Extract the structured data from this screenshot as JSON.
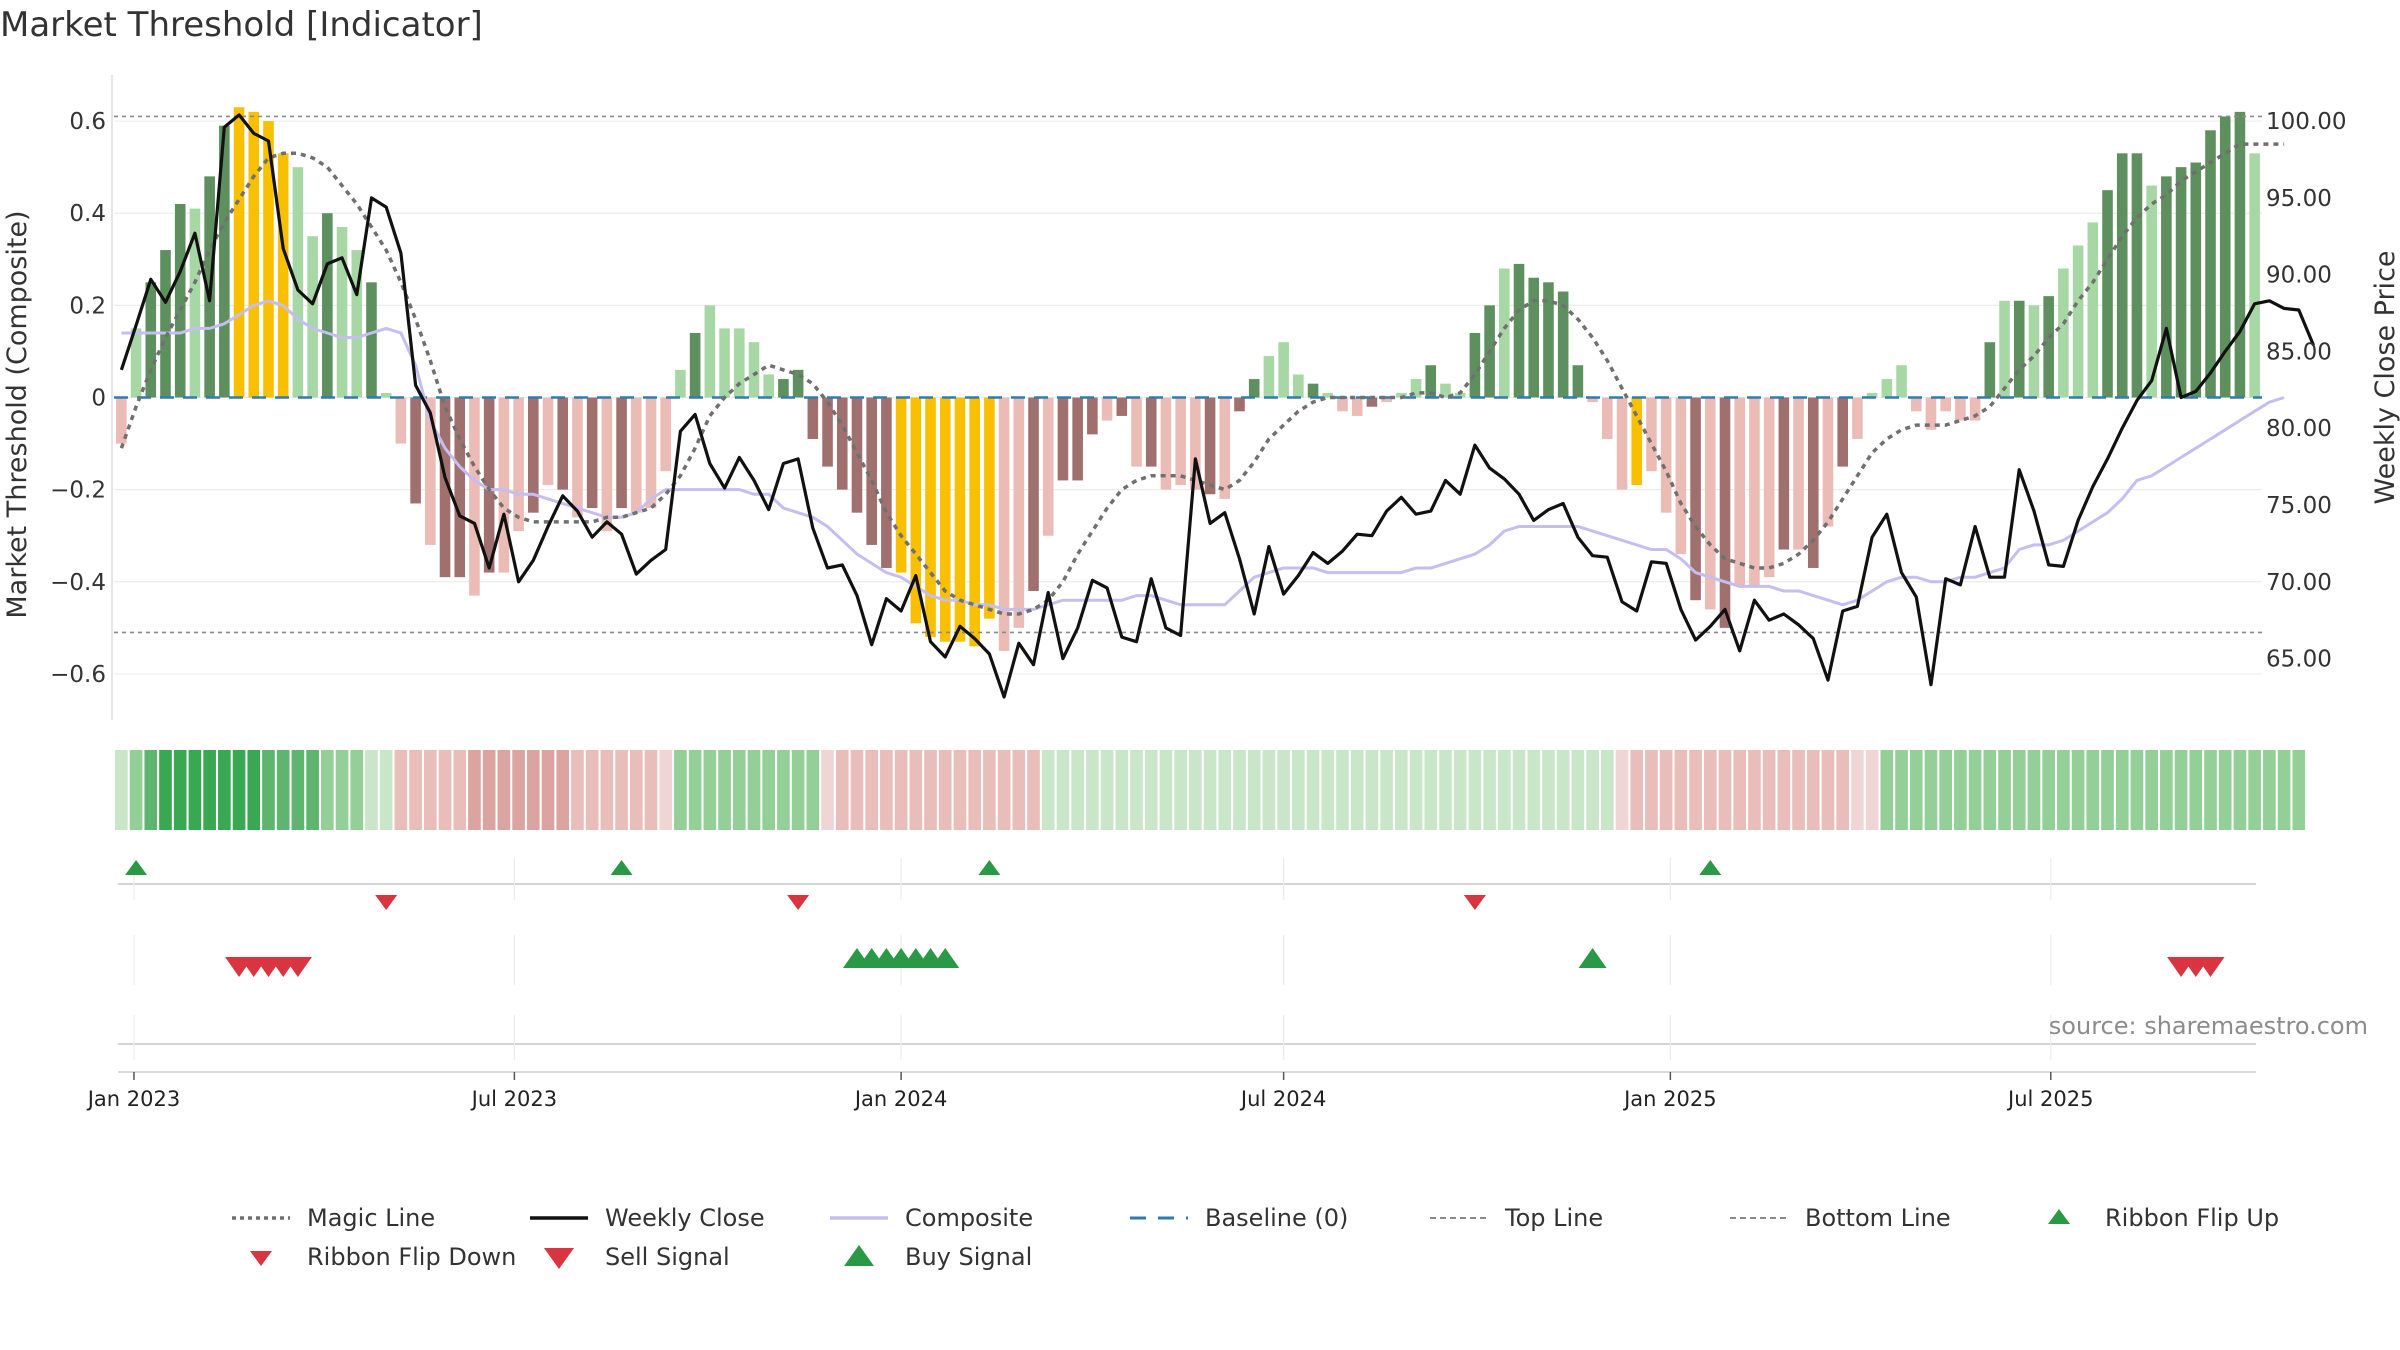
{
  "title": "Market Threshold [Indicator]",
  "source": "source: sharemaestro.com",
  "colors": {
    "gold": "#f9c002",
    "dark_green": "#5e8f5e",
    "light_green": "#a8d7a6",
    "dark_red": "#a0706e",
    "light_red": "#ebbcb6",
    "composite": "#c6bdf0",
    "close": "#111111",
    "magic": "#707070",
    "baseline": "#2f7db0",
    "up": "#2a9946",
    "down": "#d93540"
  },
  "legend": [
    {
      "label": "Magic Line",
      "icon": "dotted-line"
    },
    {
      "label": "Weekly Close",
      "icon": "solid-line"
    },
    {
      "label": "Composite",
      "icon": "composite-line"
    },
    {
      "label": "Baseline (0)",
      "icon": "dashed-line"
    },
    {
      "label": "Top Line",
      "icon": "thin-dashed-line"
    },
    {
      "label": "Bottom Line",
      "icon": "thin-dashed-line"
    },
    {
      "label": "Ribbon Flip Up",
      "icon": "triangle-up"
    },
    {
      "label": "Ribbon Flip Down",
      "icon": "triangle-down"
    },
    {
      "label": "Sell Signal",
      "icon": "triangle-down-large"
    },
    {
      "label": "Buy Signal",
      "icon": "triangle-up-large"
    }
  ],
  "chart_data": {
    "type": "bar",
    "title": "Market Threshold [Indicator]",
    "ylabel": "Market Threshold (Composite)",
    "y2label": "Weekly Close Price",
    "ylim": [
      -0.7,
      0.7
    ],
    "y2lim": [
      61.0,
      103.0
    ],
    "yticks": [
      -0.6,
      -0.4,
      -0.2,
      0,
      0.2,
      0.4,
      0.6
    ],
    "ytick_labels": [
      "−0.6",
      "−0.4",
      "−0.2",
      "0",
      "0.2",
      "0.4",
      "0.6"
    ],
    "y2ticks": [
      65,
      70,
      75,
      80,
      85,
      90,
      95,
      100
    ],
    "y2tick_labels": [
      "65.00",
      "70.00",
      "75.00",
      "80.00",
      "85.00",
      "90.00",
      "95.00",
      "100.00"
    ],
    "x_start": "2022-12-26",
    "x_ticks": [
      {
        "date": "2023-01-01",
        "label": "Jan 2023"
      },
      {
        "date": "2023-07-01",
        "label": "Jul 2023"
      },
      {
        "date": "2024-01-01",
        "label": "Jan 2024"
      },
      {
        "date": "2024-07-01",
        "label": "Jul 2024"
      },
      {
        "date": "2025-01-01",
        "label": "Jan 2025"
      },
      {
        "date": "2025-07-01",
        "label": "Jul 2025"
      }
    ],
    "top_line": 0.61,
    "bottom_line": -0.51,
    "baseline": 0,
    "composite_bars": [
      -0.1,
      0.15,
      0.25,
      0.32,
      0.42,
      0.41,
      0.48,
      0.59,
      0.63,
      0.62,
      0.6,
      0.53,
      0.5,
      0.35,
      0.4,
      0.37,
      0.32,
      0.25,
      0.01,
      -0.1,
      -0.23,
      -0.32,
      -0.39,
      -0.39,
      -0.43,
      -0.38,
      -0.38,
      -0.29,
      -0.25,
      -0.19,
      -0.2,
      -0.26,
      -0.24,
      -0.29,
      -0.24,
      -0.25,
      -0.24,
      -0.16,
      0.06,
      0.14,
      0.2,
      0.15,
      0.15,
      0.12,
      0.05,
      0.04,
      0.06,
      -0.09,
      -0.15,
      -0.2,
      -0.25,
      -0.32,
      -0.37,
      -0.38,
      -0.49,
      -0.52,
      -0.53,
      -0.53,
      -0.54,
      -0.48,
      -0.55,
      -0.5,
      -0.42,
      -0.3,
      -0.18,
      -0.18,
      -0.08,
      -0.05,
      -0.04,
      -0.15,
      -0.15,
      -0.2,
      -0.19,
      -0.2,
      -0.21,
      -0.22,
      -0.03,
      0.04,
      0.09,
      0.12,
      0.05,
      0.03,
      0.01,
      -0.03,
      -0.04,
      -0.02,
      -0.01,
      0.01,
      0.04,
      0.07,
      0.03,
      0.01,
      0.14,
      0.2,
      0.28,
      0.29,
      0.26,
      0.25,
      0.23,
      0.07,
      -0.01,
      -0.09,
      -0.2,
      -0.19,
      -0.16,
      -0.25,
      -0.34,
      -0.44,
      -0.46,
      -0.5,
      -0.41,
      -0.41,
      -0.39,
      -0.33,
      -0.33,
      -0.37,
      -0.28,
      -0.15,
      -0.09,
      0.01,
      0.04,
      0.07,
      -0.03,
      -0.07,
      -0.03,
      -0.05,
      -0.05,
      0.12,
      0.21,
      0.21,
      0.2,
      0.22,
      0.28,
      0.33,
      0.38,
      0.45,
      0.53,
      0.53,
      0.46,
      0.48,
      0.5,
      0.51,
      0.58,
      0.61,
      0.62,
      0.53
    ],
    "bar_states": "LLDDDLDDGGGGLLDLLDLLDLDDLDLLDLDLDLDLLLLDLLLLLDDDDDDDDGGGGGGGLLDLDDDLDLDLLLDLDDLLLDLLLDLLLDLLDDLDDDDDLLLGLLLDLDLLLDLDLDLLLLLLLLLDLDLDLLLDDDLDDDDDDLLDDDDGGL",
    "ribbon_levels": [
      1,
      2,
      3,
      4,
      4,
      4,
      4,
      4,
      4,
      4,
      3,
      3,
      3,
      3,
      2,
      2,
      2,
      1,
      1,
      -2,
      -2,
      -2,
      -2,
      -2,
      -3,
      -3,
      -3,
      -3,
      -3,
      -3,
      -3,
      -2,
      -2,
      -2,
      -2,
      -2,
      -2,
      -1,
      2,
      2,
      2,
      2,
      2,
      2,
      2,
      2,
      2,
      2,
      -1,
      -2,
      -2,
      -2,
      -2,
      -2,
      -2,
      -2,
      -2,
      -2,
      -2,
      -2,
      -2,
      -2,
      -2,
      1,
      1,
      1,
      1,
      1,
      1,
      1,
      1,
      1,
      1,
      1,
      1,
      1,
      1,
      1,
      1,
      1,
      1,
      1,
      1,
      1,
      1,
      1,
      1,
      1,
      1,
      1,
      1,
      1,
      1,
      1,
      1,
      1,
      1,
      1,
      1,
      1,
      1,
      1,
      -1,
      -2,
      -2,
      -2,
      -2,
      -2,
      -2,
      -2,
      -2,
      -2,
      -2,
      -2,
      -2,
      -2,
      -2,
      -2,
      -1,
      -1,
      2,
      2,
      2,
      2,
      2,
      2,
      2,
      2,
      2,
      2,
      2,
      2,
      2,
      2,
      2,
      2,
      2,
      2,
      2,
      2,
      2,
      2,
      2,
      2,
      2,
      2,
      2,
      2,
      2
    ],
    "series": [
      {
        "name": "Weekly Close",
        "axis": "right",
        "values": [
          83.8,
          86.7,
          89.7,
          88.2,
          90.2,
          92.7,
          88.3,
          99.6,
          100.4,
          99.2,
          98.7,
          91.7,
          89.0,
          88.1,
          90.7,
          91.1,
          88.7,
          95.0,
          94.4,
          91.4,
          82.8,
          81.0,
          76.8,
          74.3,
          73.8,
          70.9,
          74.4,
          70.0,
          71.4,
          73.6,
          75.6,
          74.6,
          72.9,
          73.9,
          73.1,
          70.5,
          71.4,
          72.1,
          79.8,
          80.9,
          77.7,
          76.1,
          78.1,
          76.6,
          74.7,
          77.7,
          78.0,
          73.5,
          70.9,
          71.1,
          69.1,
          65.9,
          68.9,
          68.1,
          70.4,
          66.1,
          65.1,
          67.1,
          66.3,
          65.3,
          62.5,
          66.0,
          64.6,
          69.3,
          65.0,
          67.0,
          70.1,
          69.6,
          66.4,
          66.1,
          70.2,
          67.0,
          66.5,
          78.0,
          73.8,
          74.5,
          71.5,
          67.9,
          72.3,
          69.2,
          70.4,
          71.9,
          71.2,
          72.0,
          73.1,
          73.0,
          74.6,
          75.5,
          74.4,
          74.6,
          76.6,
          75.7,
          78.9,
          77.4,
          76.7,
          75.7,
          74.0,
          74.7,
          75.1,
          72.9,
          71.7,
          71.6,
          68.7,
          68.1,
          71.3,
          71.2,
          68.2,
          66.2,
          67.1,
          68.2,
          65.5,
          68.8,
          67.5,
          67.9,
          67.2,
          66.3,
          63.6,
          68.1,
          68.4,
          72.9,
          74.4,
          70.6,
          69.0,
          63.3,
          70.2,
          69.8,
          73.6,
          70.3,
          70.3,
          77.3,
          74.6,
          71.1,
          71.0,
          74.0,
          76.2,
          78.0,
          80.0,
          81.8,
          83.1,
          86.5,
          82.0,
          82.4,
          83.6,
          85.0,
          86.3,
          88.1,
          88.3,
          87.8,
          87.7,
          85.4
        ]
      },
      {
        "name": "Composite",
        "axis": "left",
        "values": [
          0.14,
          0.14,
          0.14,
          0.14,
          0.14,
          0.15,
          0.15,
          0.16,
          0.18,
          0.2,
          0.21,
          0.2,
          0.17,
          0.15,
          0.14,
          0.13,
          0.13,
          0.14,
          0.15,
          0.14,
          0.07,
          -0.05,
          -0.11,
          -0.15,
          -0.18,
          -0.2,
          -0.2,
          -0.21,
          -0.21,
          -0.22,
          -0.23,
          -0.24,
          -0.25,
          -0.26,
          -0.26,
          -0.25,
          -0.22,
          -0.2,
          -0.2,
          -0.2,
          -0.2,
          -0.2,
          -0.2,
          -0.21,
          -0.21,
          -0.24,
          -0.25,
          -0.26,
          -0.28,
          -0.31,
          -0.34,
          -0.36,
          -0.38,
          -0.39,
          -0.41,
          -0.43,
          -0.44,
          -0.44,
          -0.45,
          -0.45,
          -0.46,
          -0.46,
          -0.46,
          -0.45,
          -0.44,
          -0.44,
          -0.44,
          -0.44,
          -0.44,
          -0.43,
          -0.43,
          -0.44,
          -0.45,
          -0.45,
          -0.45,
          -0.45,
          -0.42,
          -0.39,
          -0.38,
          -0.37,
          -0.37,
          -0.37,
          -0.38,
          -0.38,
          -0.38,
          -0.38,
          -0.38,
          -0.38,
          -0.37,
          -0.37,
          -0.36,
          -0.35,
          -0.34,
          -0.32,
          -0.29,
          -0.28,
          -0.28,
          -0.28,
          -0.28,
          -0.28,
          -0.29,
          -0.3,
          -0.31,
          -0.32,
          -0.33,
          -0.33,
          -0.35,
          -0.38,
          -0.39,
          -0.4,
          -0.41,
          -0.41,
          -0.41,
          -0.42,
          -0.42,
          -0.43,
          -0.44,
          -0.45,
          -0.44,
          -0.42,
          -0.4,
          -0.39,
          -0.39,
          -0.4,
          -0.4,
          -0.39,
          -0.39,
          -0.38,
          -0.37,
          -0.33,
          -0.32,
          -0.32,
          -0.31,
          -0.29,
          -0.27,
          -0.25,
          -0.22,
          -0.18,
          -0.17,
          -0.15,
          -0.13,
          -0.11,
          -0.09,
          -0.07,
          -0.05,
          -0.03,
          -0.01,
          0.0
        ]
      },
      {
        "name": "Magic Line",
        "axis": "left",
        "values": [
          -0.11,
          -0.02,
          0.06,
          0.13,
          0.19,
          0.25,
          0.32,
          0.38,
          0.43,
          0.48,
          0.52,
          0.53,
          0.53,
          0.52,
          0.5,
          0.46,
          0.42,
          0.37,
          0.32,
          0.25,
          0.17,
          0.08,
          -0.02,
          -0.09,
          -0.15,
          -0.2,
          -0.24,
          -0.26,
          -0.27,
          -0.27,
          -0.27,
          -0.27,
          -0.27,
          -0.26,
          -0.26,
          -0.25,
          -0.24,
          -0.21,
          -0.17,
          -0.11,
          -0.04,
          0.0,
          0.03,
          0.05,
          0.07,
          0.06,
          0.05,
          0.03,
          -0.01,
          -0.06,
          -0.12,
          -0.18,
          -0.25,
          -0.3,
          -0.34,
          -0.38,
          -0.42,
          -0.44,
          -0.45,
          -0.46,
          -0.47,
          -0.47,
          -0.46,
          -0.44,
          -0.4,
          -0.34,
          -0.29,
          -0.24,
          -0.2,
          -0.18,
          -0.17,
          -0.17,
          -0.17,
          -0.18,
          -0.19,
          -0.2,
          -0.18,
          -0.14,
          -0.09,
          -0.06,
          -0.03,
          -0.01,
          0.0,
          0.0,
          0.0,
          0.0,
          0.0,
          0.0,
          0.01,
          0.01,
          0.0,
          0.01,
          0.05,
          0.1,
          0.15,
          0.19,
          0.21,
          0.21,
          0.2,
          0.17,
          0.13,
          0.08,
          0.02,
          -0.04,
          -0.1,
          -0.16,
          -0.23,
          -0.28,
          -0.32,
          -0.35,
          -0.36,
          -0.37,
          -0.37,
          -0.36,
          -0.34,
          -0.31,
          -0.27,
          -0.22,
          -0.17,
          -0.12,
          -0.09,
          -0.07,
          -0.06,
          -0.06,
          -0.06,
          -0.05,
          -0.04,
          -0.02,
          0.02,
          0.06,
          0.09,
          0.13,
          0.16,
          0.21,
          0.25,
          0.3,
          0.35,
          0.39,
          0.42,
          0.44,
          0.47,
          0.49,
          0.51,
          0.53,
          0.55,
          0.55,
          0.55,
          0.55
        ]
      }
    ],
    "ribbon_flip_up": [
      1,
      34,
      59,
      108
    ],
    "ribbon_flip_down": [
      18,
      46,
      92
    ],
    "sell_signals": [
      8,
      9,
      10,
      11,
      12,
      140,
      141,
      142
    ],
    "buy_signals": [
      50,
      51,
      52,
      53,
      54,
      55,
      56,
      100
    ]
  }
}
